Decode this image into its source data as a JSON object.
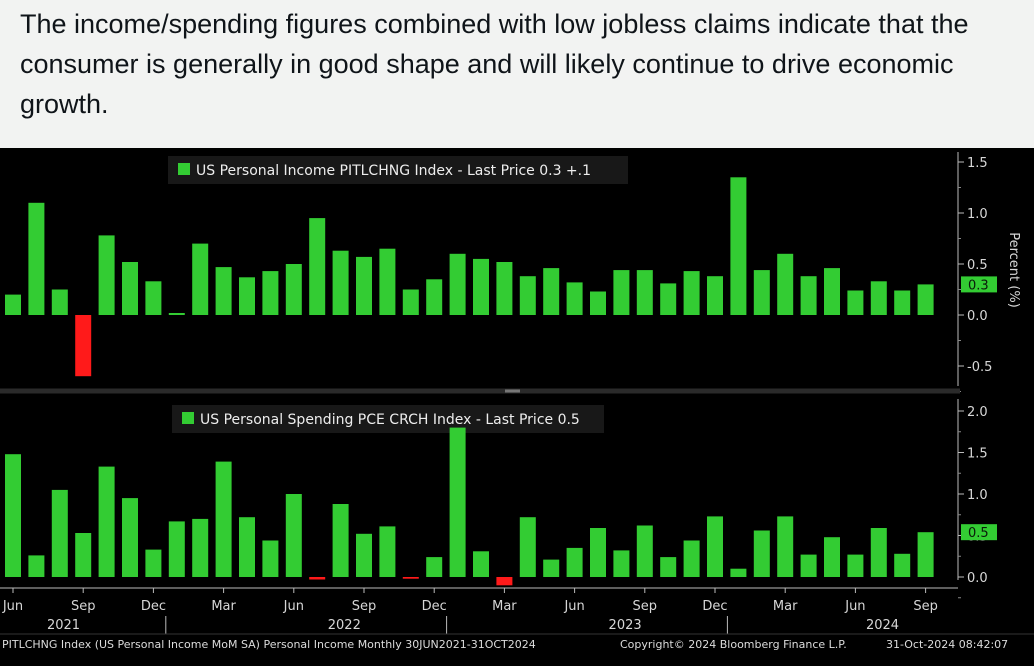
{
  "post": {
    "text": "The income/spending figures combined with low jobless claims indicate that the consumer is generally in good shape and will likely continue to drive economic growth."
  },
  "chart_data": [
    {
      "type": "bar",
      "legend": "US Personal Income PITLCHNG Index - Last Price 0.3  +.1",
      "ylabel": "Percent (%)",
      "last_value_label": "0.3",
      "ylim": [
        -0.6,
        1.6
      ],
      "ticks": [
        1.5,
        1.0,
        0.5,
        0.0,
        -0.5
      ],
      "tick_labels": [
        "1.5",
        "1.0",
        "0.5",
        "0.0",
        "-0.5"
      ],
      "series": [
        {
          "values": [
            0.2,
            1.1,
            0.25,
            -0.6,
            0.78,
            0.52,
            0.33,
            0.02,
            0.7,
            0.47,
            0.37,
            0.43,
            0.5,
            0.95,
            0.63,
            0.57,
            0.65,
            0.25,
            0.35,
            0.6,
            0.55,
            0.52,
            0.38,
            0.46,
            0.32,
            0.23,
            0.44,
            0.44,
            0.31,
            0.43,
            0.38,
            1.35,
            0.44,
            0.6,
            0.38,
            0.46,
            0.24,
            0.33,
            0.24,
            0.3
          ]
        }
      ],
      "bar_colors": {
        "positive": "#33cc33",
        "negative": "#ff1a1a"
      }
    },
    {
      "type": "bar",
      "legend": "US Personal Spending PCE CRCH Index - Last Price 0.5",
      "last_value_label": "0.5",
      "ylim": [
        -0.15,
        2.1
      ],
      "ticks": [
        2.0,
        1.5,
        1.0,
        0.5,
        0.0
      ],
      "tick_labels": [
        "2.0",
        "1.5",
        "1.0",
        "0.5",
        "0.0"
      ],
      "series": [
        {
          "values": [
            1.48,
            0.26,
            1.05,
            0.53,
            1.33,
            0.95,
            0.33,
            0.67,
            0.7,
            1.39,
            0.72,
            0.44,
            1.0,
            -0.03,
            0.88,
            0.52,
            0.61,
            -0.02,
            0.24,
            1.8,
            0.31,
            -0.1,
            0.72,
            0.21,
            0.35,
            0.59,
            0.32,
            0.62,
            0.24,
            0.44,
            0.73,
            0.1,
            0.56,
            0.73,
            0.27,
            0.48,
            0.27,
            0.59,
            0.28,
            0.54
          ]
        }
      ],
      "bar_colors": {
        "positive": "#33cc33",
        "negative": "#ff1a1a"
      }
    }
  ],
  "x_axis": {
    "months": [
      "Jun",
      "Sep",
      "Dec",
      "Mar",
      "Jun",
      "Sep",
      "Dec",
      "Mar",
      "Jun",
      "Sep",
      "Dec",
      "Mar",
      "Jun",
      "Sep"
    ],
    "years": [
      "2021",
      "2022",
      "2023",
      "2024"
    ]
  },
  "footer": {
    "left": "PITLCHNG Index (US Personal Income MoM SA) Personal Income  Monthly 30JUN2021-31OCT2024",
    "copyright": "Copyright© 2024 Bloomberg Finance L.P.",
    "date": "31-Oct-2024 08:42:07"
  },
  "colors": {
    "positive": "#33cc33",
    "negative": "#ff1a1a",
    "background": "#000000",
    "badge": "#33cc33"
  }
}
